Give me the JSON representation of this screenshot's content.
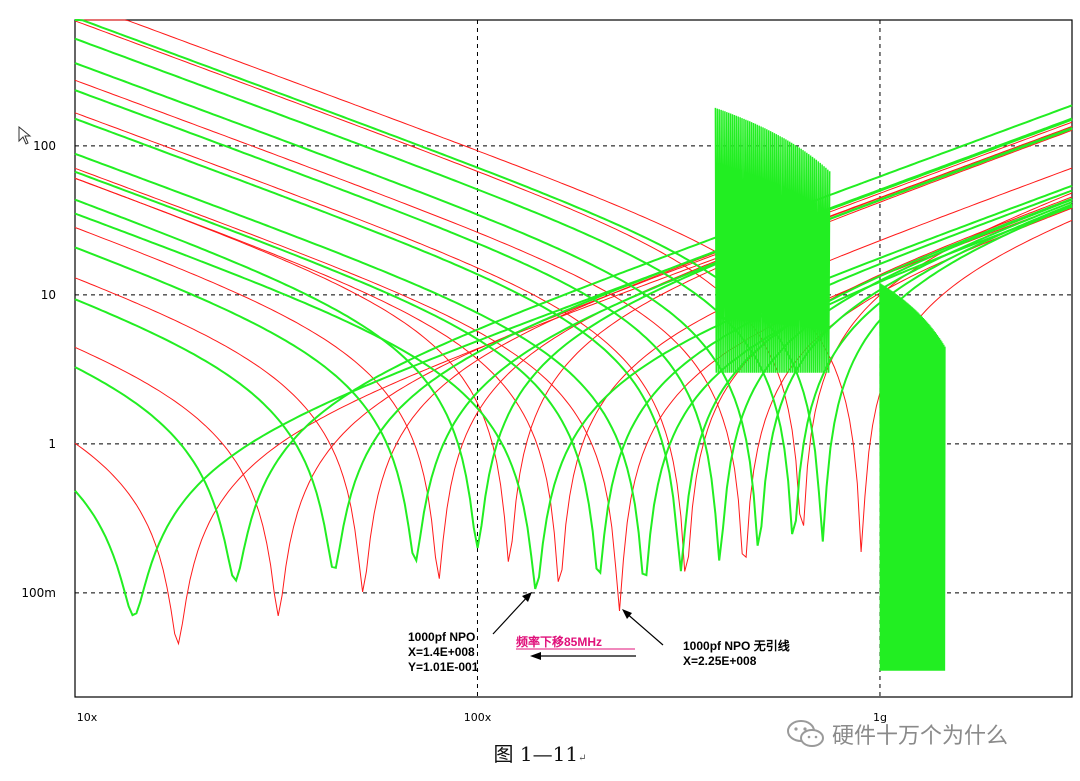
{
  "chart_data": {
    "type": "line",
    "scale": "log-log",
    "grid": true,
    "x_ticks": [
      "10x",
      "100x",
      "1g"
    ],
    "x_range_hz": [
      10000000,
      3000000000
    ],
    "y_ticks": [
      "100",
      "10",
      "1",
      "100m"
    ],
    "y_range_ohm": [
      0.02,
      700
    ],
    "series_colors": {
      "red": "#ff1a1a",
      "green": "#22ee22"
    },
    "red_curves_resonance_hz": [
      18000000,
      32000000,
      52000000,
      80000000,
      120000000,
      160000000,
      225000000,
      330000000,
      460000000,
      640000000,
      900000000
    ],
    "red_curves_min_ohm": [
      0.045,
      0.07,
      0.1,
      0.12,
      0.15,
      0.1,
      0.075,
      0.11,
      0.12,
      0.2,
      0.18
    ],
    "green_curves_resonance_hz": [
      14000000,
      25000000,
      44000000,
      70000000,
      100000000,
      140000000,
      200000000,
      260000000,
      320000000,
      400000000,
      500000000,
      610000000,
      720000000
    ],
    "green_curves_min_ohm": [
      0.07,
      0.12,
      0.14,
      0.16,
      0.2,
      0.101,
      0.12,
      0.11,
      0.14,
      0.16,
      0.18,
      0.2,
      0.22
    ],
    "annotations": [
      {
        "lines": [
          "1000pf NPO",
          "X=1.4E+008",
          "Y=1.01E-001"
        ]
      },
      {
        "lines": [
          "1000pf NPO 无引线",
          "X=2.25E+008"
        ]
      },
      {
        "text": "频率下移85MHz"
      }
    ]
  },
  "caption": "图 1—11",
  "watermark": "硬件十万个为什么"
}
